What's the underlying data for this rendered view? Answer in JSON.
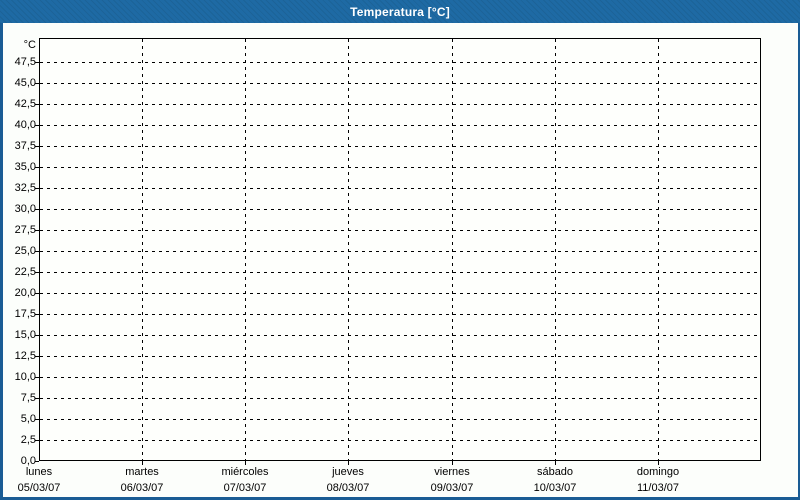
{
  "window": {
    "title": "Temperatura [°C]"
  },
  "colors": {
    "titlebar": "#1e6aa4",
    "border": "#1a5c94",
    "title_text": "#ffffff",
    "background": "#fcfefb",
    "plot_background": "#fefffc",
    "grid": "#000000",
    "text": "#000000"
  },
  "chart_data": {
    "type": "line",
    "title": "Temperatura [°C]",
    "ylabel": "°C",
    "grid": true,
    "legend": false,
    "series": [],
    "y_axis": {
      "unit_label": "°C",
      "tick_labels": [
        "47,5",
        "45,0",
        "42,5",
        "40,0",
        "37,5",
        "35,0",
        "32,5",
        "30,0",
        "27,5",
        "25,0",
        "22,5",
        "20,0",
        "17,5",
        "15,0",
        "12,5",
        "10,0",
        "7,5",
        "5,0",
        "2,5",
        "0,0"
      ],
      "tick_values": [
        47.5,
        45,
        42.5,
        40,
        37.5,
        35,
        32.5,
        30,
        27.5,
        25,
        22.5,
        20,
        17.5,
        15,
        12.5,
        10,
        7.5,
        5,
        2.5,
        0
      ],
      "ylim": [
        0,
        50.4
      ],
      "tick_step": 2.5
    },
    "x_axis": {
      "categories": [
        {
          "day": "lunes",
          "date": "05/03/07"
        },
        {
          "day": "martes",
          "date": "06/03/07"
        },
        {
          "day": "miércoles",
          "date": "07/03/07"
        },
        {
          "day": "jueves",
          "date": "08/03/07"
        },
        {
          "day": "viernes",
          "date": "09/03/07"
        },
        {
          "day": "sábado",
          "date": "10/03/07"
        },
        {
          "day": "domingo",
          "date": "11/03/07"
        }
      ]
    }
  }
}
